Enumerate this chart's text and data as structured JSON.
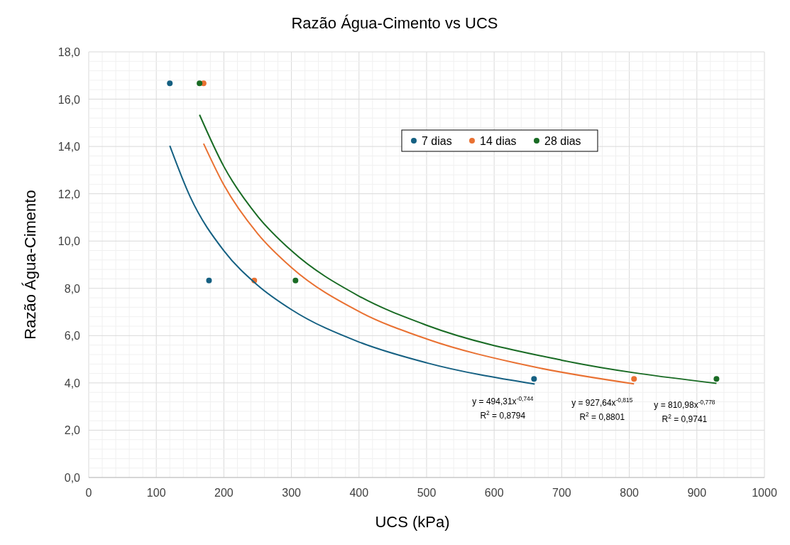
{
  "chart_data": {
    "type": "scatter",
    "title": "Razão Água-Cimento vs UCS",
    "xlabel": "UCS (kPa)",
    "ylabel": "Razão Água-Cimento",
    "xlim": [
      0,
      1000
    ],
    "xticks": [
      0,
      100,
      200,
      300,
      400,
      500,
      600,
      700,
      800,
      900,
      1000
    ],
    "ylim": [
      0,
      18
    ],
    "yticks": [
      {
        "value": 0,
        "label": "0,0"
      },
      {
        "value": 2,
        "label": "2,0"
      },
      {
        "value": 4,
        "label": "4,0"
      },
      {
        "value": 6,
        "label": "6,0"
      },
      {
        "value": 8,
        "label": "8,0"
      },
      {
        "value": 10,
        "label": "10,0"
      },
      {
        "value": 12,
        "label": "12,0"
      },
      {
        "value": 14,
        "label": "14,0"
      },
      {
        "value": 16,
        "label": "16,0"
      },
      {
        "value": 18,
        "label": "18,0"
      }
    ],
    "grid": true,
    "legend": "top right",
    "marker": "circle",
    "series": [
      {
        "name": "7 dias",
        "color": "#156082",
        "x": [
          120,
          178,
          659
        ],
        "values": [
          16.67,
          8.33,
          4.17
        ]
      },
      {
        "name": "14 dias",
        "color": "#e97132",
        "x": [
          170,
          245,
          807
        ],
        "values": [
          16.67,
          8.33,
          4.17
        ]
      },
      {
        "name": "28 dias",
        "color": "#196b24",
        "x": [
          164,
          306,
          929
        ],
        "values": [
          16.67,
          8.33,
          4.17
        ]
      },
      {
        "type": "line",
        "color": "#156082",
        "marker": "none",
        "x": [
          120,
          150,
          200,
          250,
          300,
          400,
          500,
          660
        ],
        "values": [
          14.03,
          11.88,
          9.59,
          8.13,
          7.1,
          5.73,
          4.85,
          3.95
        ]
      },
      {
        "type": "line",
        "color": "#e97132",
        "marker": "none",
        "x": [
          170,
          200,
          250,
          300,
          400,
          500,
          650,
          807
        ],
        "values": [
          14.12,
          12.37,
          10.31,
          8.88,
          7.02,
          5.86,
          4.73,
          3.96
        ]
      },
      {
        "type": "line",
        "color": "#196b24",
        "marker": "none",
        "x": [
          164,
          200,
          250,
          300,
          400,
          500,
          700,
          929
        ],
        "values": [
          15.34,
          13.15,
          11.05,
          9.59,
          7.67,
          6.44,
          4.96,
          3.98
        ]
      }
    ],
    "annotations": [
      "y = 494,31x$^{-0,744}$",
      "R$^{2}$ = 0,8794",
      "y = 927,64x$^{-0,815}$",
      "R$^{2}$ = 0,8801",
      "y = 810,98x$^{-0,778}$",
      "R$^{2}$ = 0,9741"
    ]
  }
}
